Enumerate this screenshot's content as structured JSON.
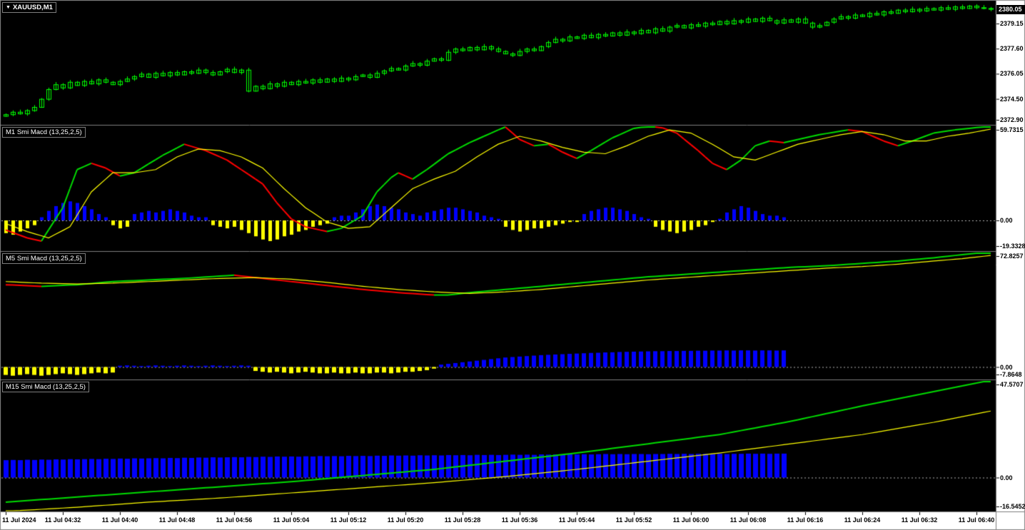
{
  "ui": {
    "symbol_tab": "XAUUSD,M1"
  },
  "colors": {
    "background": "#000000",
    "bull_candle": "#00FF00",
    "line_up": "#00DD00",
    "line_down": "#FF0000",
    "signal_line": "#FFFF00",
    "hist_positive": "#0000FF",
    "hist_negative": "#FFFF00",
    "current_price_bg": "#000000",
    "current_price_text": "#FFFFFF"
  },
  "chart_data": [
    {
      "type": "candlestick",
      "symbol": "XAUUSD",
      "timeframe": "M1",
      "current_price": "2380.05",
      "scale_labels": [
        "2379.15",
        "2377.60",
        "2376.05",
        "2374.50",
        "2372.90"
      ],
      "ylim": [
        2372.9,
        2380.55
      ],
      "x_labels": [
        {
          "bar": 0,
          "text": "11 Jul 2024"
        },
        {
          "bar": 8,
          "text": "11 Jul 04:32"
        },
        {
          "bar": 16,
          "text": "11 Jul 04:40"
        },
        {
          "bar": 24,
          "text": "11 Jul 04:48"
        },
        {
          "bar": 32,
          "text": "11 Jul 04:56"
        },
        {
          "bar": 40,
          "text": "11 Jul 05:04"
        },
        {
          "bar": 48,
          "text": "11 Jul 05:12"
        },
        {
          "bar": 56,
          "text": "11 Jul 05:20"
        },
        {
          "bar": 64,
          "text": "11 Jul 05:28"
        },
        {
          "bar": 72,
          "text": "11 Jul 05:36"
        },
        {
          "bar": 80,
          "text": "11 Jul 05:44"
        },
        {
          "bar": 88,
          "text": "11 Jul 05:52"
        },
        {
          "bar": 96,
          "text": "11 Jul 06:00"
        },
        {
          "bar": 104,
          "text": "11 Jul 06:08"
        },
        {
          "bar": 112,
          "text": "11 Jul 06:16"
        },
        {
          "bar": 120,
          "text": "11 Jul 06:24"
        },
        {
          "bar": 128,
          "text": "11 Jul 06:32"
        },
        {
          "bar": 136,
          "text": "11 Jul 06:40"
        }
      ],
      "closes": [
        2373.55,
        2373.7,
        2373.6,
        2373.8,
        2374.0,
        2374.5,
        2375.1,
        2375.4,
        2375.2,
        2375.55,
        2375.35,
        2375.6,
        2375.45,
        2375.7,
        2375.55,
        2375.4,
        2375.6,
        2375.75,
        2375.9,
        2376.05,
        2375.85,
        2376.1,
        2375.95,
        2376.15,
        2376.0,
        2376.2,
        2376.1,
        2376.3,
        2376.15,
        2376.0,
        2376.2,
        2376.35,
        2376.15,
        2376.3,
        2375.0,
        2375.3,
        2375.15,
        2375.45,
        2375.3,
        2375.55,
        2375.4,
        2375.6,
        2375.5,
        2375.7,
        2375.55,
        2375.75,
        2375.6,
        2375.8,
        2375.7,
        2375.9,
        2376.0,
        2375.85,
        2376.1,
        2376.25,
        2376.4,
        2376.3,
        2376.55,
        2376.7,
        2376.6,
        2376.85,
        2377.0,
        2376.9,
        2377.4,
        2377.6,
        2377.5,
        2377.7,
        2377.55,
        2377.75,
        2377.6,
        2377.45,
        2377.3,
        2377.2,
        2377.45,
        2377.6,
        2377.5,
        2377.75,
        2378.0,
        2378.2,
        2378.1,
        2378.35,
        2378.25,
        2378.45,
        2378.3,
        2378.5,
        2378.4,
        2378.6,
        2378.45,
        2378.65,
        2378.55,
        2378.75,
        2378.6,
        2378.85,
        2378.7,
        2378.95,
        2379.05,
        2378.9,
        2379.1,
        2379.0,
        2379.2,
        2379.1,
        2379.3,
        2379.15,
        2379.35,
        2379.25,
        2379.45,
        2379.3,
        2379.5,
        2379.35,
        2379.2,
        2379.4,
        2379.25,
        2379.45,
        2379.2,
        2378.95,
        2379.05,
        2379.25,
        2379.45,
        2379.6,
        2379.5,
        2379.7,
        2379.6,
        2379.8,
        2379.7,
        2379.9,
        2379.8,
        2380.0,
        2379.9,
        2380.05,
        2379.95,
        2380.1,
        2380.0,
        2380.15,
        2380.05,
        2380.2,
        2380.1,
        2380.25,
        2380.15,
        2380.1,
        2380.05
      ]
    },
    {
      "type": "macd_histogram",
      "title": "M1 Smi Macd (13,25,2,5)",
      "ylim": [
        -19.3328,
        59.7315
      ],
      "scale_labels": {
        "top": "59.7315",
        "zero": "0.00",
        "bottom": "-19.3328"
      },
      "main_line": {
        "bars": [
          0,
          3,
          5,
          8,
          10,
          12,
          14,
          16,
          18,
          22,
          25,
          28,
          31,
          33,
          36,
          38,
          40,
          42,
          45,
          47,
          50,
          52,
          54,
          55,
          57,
          59,
          62,
          65,
          68,
          70,
          72,
          74,
          76,
          78,
          80,
          82,
          85,
          88,
          91,
          94,
          97,
          99,
          101,
          103,
          105,
          107,
          109,
          111,
          114,
          118,
          120,
          123,
          125,
          127,
          130,
          133,
          136,
          138
        ],
        "values": [
          -6,
          -11,
          -13,
          8,
          32,
          36,
          33,
          28,
          30,
          41,
          48,
          44,
          38,
          32,
          23,
          11,
          1,
          -4,
          -7,
          -5,
          3,
          18,
          27,
          30,
          26,
          32,
          42,
          49,
          55,
          59,
          51,
          47,
          48,
          43,
          39,
          44,
          52,
          58,
          60,
          55,
          44,
          36,
          32,
          38,
          47,
          50,
          49,
          51,
          54,
          57,
          56,
          50,
          47,
          50,
          55,
          57,
          58.5,
          59.73
        ]
      },
      "signal_line": {
        "bars": [
          0,
          3,
          6,
          9,
          12,
          15,
          18,
          21,
          24,
          27,
          30,
          33,
          36,
          39,
          42,
          45,
          48,
          51,
          54,
          57,
          60,
          63,
          66,
          69,
          72,
          75,
          78,
          81,
          84,
          87,
          90,
          93,
          96,
          99,
          102,
          105,
          108,
          111,
          114,
          117,
          120,
          123,
          126,
          129,
          132,
          135,
          138
        ],
        "values": [
          -2,
          -7,
          -11,
          -4,
          18,
          30,
          30,
          32,
          40,
          45,
          44,
          40,
          33,
          20,
          8,
          -1,
          -5,
          -4,
          8,
          20,
          26,
          31,
          40,
          48,
          53,
          50,
          46,
          43,
          42,
          47,
          53,
          57,
          55,
          48,
          40,
          38,
          43,
          48,
          51,
          54,
          56,
          54,
          50,
          50,
          53,
          55,
          57.5
        ]
      },
      "histogram_values": [
        -8,
        -9,
        -7,
        -5,
        -3,
        2,
        6,
        9,
        11,
        12,
        11,
        9,
        7,
        4,
        2,
        -3,
        -5,
        -4,
        4,
        5,
        6,
        5,
        6,
        7,
        6,
        5,
        3,
        2,
        2,
        -3,
        -4,
        -5,
        -4,
        -6,
        -8,
        -10,
        -12,
        -13,
        -12,
        -10,
        -9,
        -7,
        -6,
        -4,
        -3,
        -2,
        2,
        3,
        3,
        5,
        7,
        9,
        10,
        9,
        8,
        7,
        5,
        4,
        3,
        5,
        6,
        7,
        8,
        8,
        7,
        6,
        5,
        3,
        2,
        1,
        -4,
        -6,
        -7,
        -6,
        -5,
        -5,
        -4,
        -3,
        -2,
        -1,
        -1,
        4,
        6,
        7,
        8,
        8,
        7,
        6,
        4,
        2,
        1,
        -4,
        -6,
        -7,
        -8,
        -7,
        -6,
        -4,
        -3,
        -1,
        1,
        5,
        7,
        9,
        8,
        6,
        4,
        3,
        3,
        2
      ]
    },
    {
      "type": "macd_histogram",
      "title": "M5 Smi Macd (13,25,2,5)",
      "ylim": [
        -7.8648,
        72.8257
      ],
      "scale_labels": {
        "top": "72.8257",
        "zero": "0.00",
        "bottom": "-7.8648"
      },
      "main_line": {
        "bars": [
          0,
          5,
          10,
          15,
          20,
          25,
          30,
          32,
          35,
          40,
          45,
          50,
          55,
          60,
          62,
          65,
          70,
          75,
          80,
          85,
          90,
          95,
          100,
          105,
          110,
          115,
          120,
          125,
          130,
          134,
          138
        ],
        "values": [
          52,
          51,
          52,
          54,
          55,
          56,
          57.5,
          58,
          56.5,
          54,
          51.5,
          49,
          47,
          45.5,
          45.5,
          47,
          49,
          51,
          53,
          55,
          57,
          58.5,
          60,
          61.5,
          63,
          64,
          65.5,
          67,
          69,
          71,
          72.83
        ]
      },
      "signal_line": {
        "bars": [
          0,
          5,
          10,
          15,
          20,
          25,
          30,
          35,
          40,
          45,
          50,
          55,
          60,
          65,
          70,
          75,
          80,
          85,
          90,
          95,
          100,
          105,
          110,
          115,
          120,
          125,
          130,
          134,
          138
        ],
        "values": [
          54,
          53,
          52.5,
          53,
          54,
          55,
          56,
          56.5,
          55.5,
          53.5,
          51,
          49,
          47.5,
          46.5,
          47.5,
          49,
          51,
          53,
          55,
          56.5,
          58,
          59.5,
          61,
          62.5,
          63.5,
          65,
          67,
          68.5,
          70.5
        ]
      },
      "histogram_values": [
        -5,
        -5.5,
        -5,
        -4.5,
        -5,
        -5.5,
        -5,
        -4.5,
        -4,
        -4.5,
        -5,
        -4.5,
        -4,
        -3.5,
        -4,
        -3.5,
        0.8,
        1,
        0.8,
        0.6,
        0.8,
        1,
        0.8,
        0.6,
        0.8,
        1,
        0.8,
        0.6,
        0.8,
        1,
        0.8,
        0.6,
        0.8,
        1,
        0.8,
        -2.5,
        -3,
        -3.5,
        -3,
        -3.5,
        -4,
        -3.5,
        -3,
        -3.5,
        -4,
        -4,
        -3.5,
        -4,
        -4,
        -3.5,
        -4,
        -4,
        -3.5,
        -3.5,
        -4,
        -3.5,
        -3,
        -3,
        -2.5,
        -2,
        -1,
        1.5,
        2,
        2.5,
        3,
        3.5,
        4,
        4.5,
        5,
        5.5,
        6,
        6.3,
        6.6,
        6.9,
        7.2,
        7.5,
        7.7,
        7.9,
        8.1,
        8.3,
        8.5,
        8.7,
        8.9,
        9.0,
        9.2,
        9.3,
        9.5,
        9.6,
        9.7,
        9.8,
        9.9,
        10,
        10,
        10.1,
        10.1,
        10.2,
        10.2,
        10.3,
        10.3,
        10.4,
        10.4,
        10.5,
        10.4,
        10.5,
        10.5,
        10.4,
        10.5,
        10.5,
        10.4,
        10.5
      ]
    },
    {
      "type": "macd_histogram",
      "title": "M15 Smi Macd (13,25,2,5)",
      "ylim": [
        -16.5452,
        47.5707
      ],
      "scale_labels": {
        "top": "47.5707",
        "zero": "0.00",
        "bottom": "-16.5452"
      },
      "main_line": {
        "bars": [
          0,
          10,
          20,
          30,
          40,
          50,
          60,
          70,
          80,
          90,
          100,
          110,
          120,
          130,
          138
        ],
        "values": [
          -12,
          -9.5,
          -7,
          -4.5,
          -2,
          1,
          4,
          8,
          12,
          16.5,
          21,
          27.5,
          35,
          42,
          47.57
        ]
      },
      "signal_line": {
        "bars": [
          0,
          10,
          20,
          30,
          40,
          50,
          60,
          70,
          80,
          90,
          100,
          110,
          120,
          130,
          138
        ],
        "values": [
          -16.5,
          -14.5,
          -12,
          -10,
          -7.5,
          -5,
          -2.5,
          0.5,
          4,
          8,
          12,
          16.5,
          21,
          27,
          32.5
        ]
      },
      "histogram_values": [
        8.5,
        8.6,
        8.5,
        8.7,
        8.6,
        8.8,
        8.7,
        8.9,
        8.8,
        9.0,
        8.9,
        9.0,
        9.1,
        9.0,
        9.2,
        9.1,
        9.3,
        9.2,
        9.4,
        9.3,
        9.4,
        9.5,
        9.4,
        9.6,
        9.5,
        9.7,
        9.6,
        9.8,
        9.7,
        9.9,
        9.8,
        9.9,
        10.0,
        9.9,
        10.1,
        10.0,
        10.2,
        10.1,
        10.3,
        10.2,
        10.3,
        10.2,
        10.4,
        10.3,
        10.5,
        10.4,
        10.5,
        10.4,
        10.6,
        10.5,
        10.6,
        10.5,
        10.7,
        10.6,
        10.8,
        10.7,
        10.8,
        10.7,
        10.9,
        10.8,
        10.9,
        10.8,
        11.0,
        10.9,
        11.0,
        10.9,
        11.1,
        11.0,
        11.1,
        11.0,
        11.1,
        11.2,
        11.1,
        11.2,
        11.1,
        11.3,
        11.2,
        11.3,
        11.2,
        11.4,
        11.3,
        11.4,
        11.3,
        11.4,
        11.5,
        11.4,
        11.5,
        11.4,
        11.5,
        11.5,
        11.4,
        11.5,
        11.5,
        11.6,
        11.5,
        11.6,
        11.5,
        11.6,
        11.6,
        11.5,
        11.6,
        11.5,
        11.6,
        11.6,
        11.7,
        11.6,
        11.7,
        11.6,
        11.7,
        11.7
      ]
    }
  ]
}
